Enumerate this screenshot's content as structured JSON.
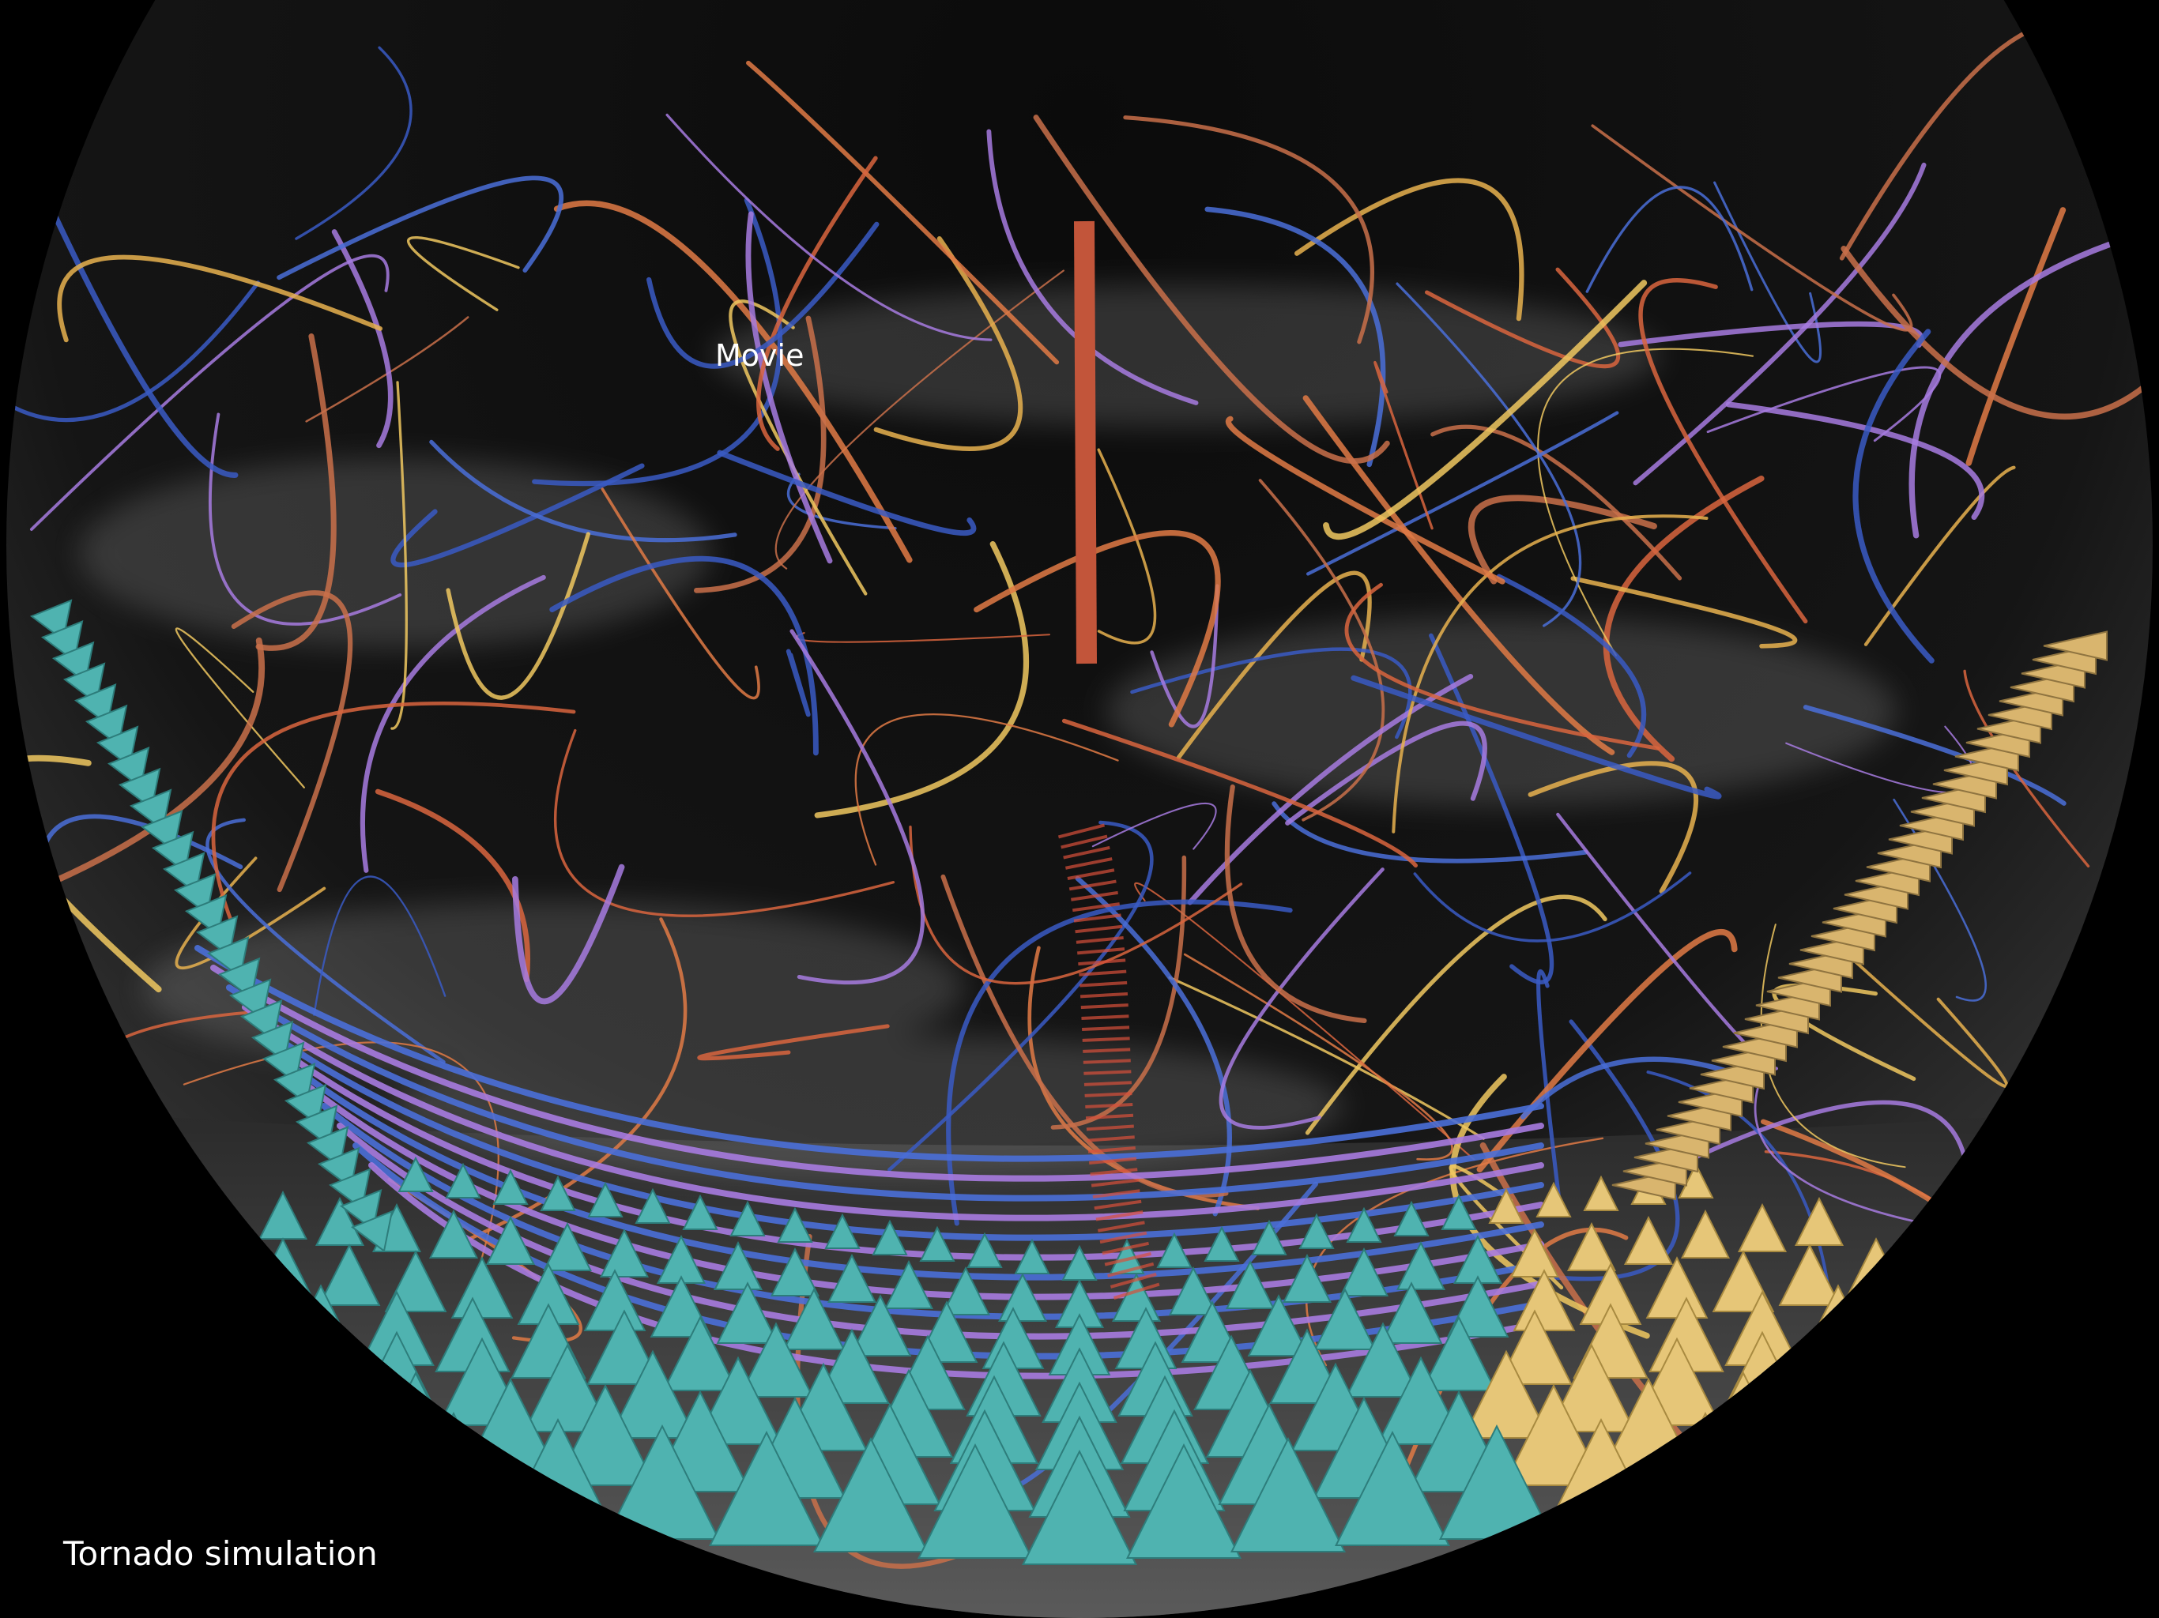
{
  "labels": {
    "movie": "Movie",
    "caption": "Tornado simulation"
  }
}
